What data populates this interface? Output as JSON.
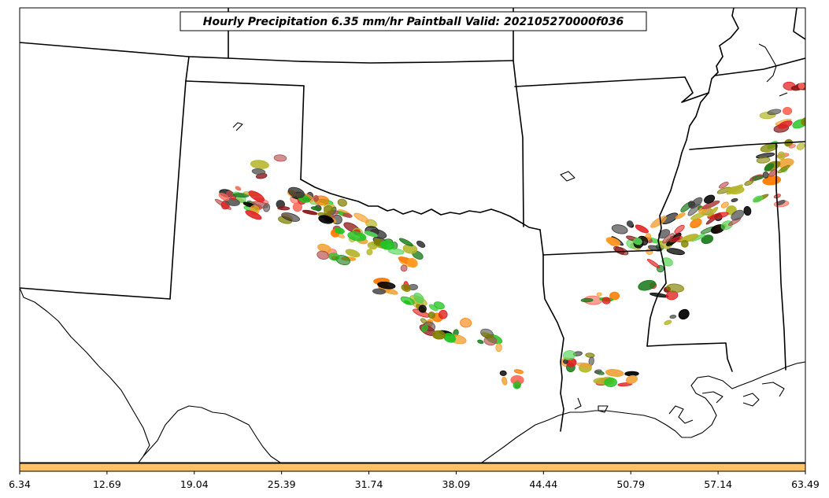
{
  "title": "Hourly Precipitation 6.35 mm/hr Paintball Valid: 202105270000f036",
  "colorbar": {
    "fill_color": "#ffc266",
    "ticks": [
      "6.34",
      "12.69",
      "19.04",
      "25.39",
      "31.74",
      "38.09",
      "44.44",
      "50.79",
      "57.14",
      "63.49"
    ]
  },
  "paintball_colors": [
    "#808000",
    "#b5b52a",
    "#1e7b1e",
    "#22c322",
    "#55d455",
    "#8b1a1a",
    "#b44a4a",
    "#e02020",
    "#ff6a5a",
    "#ff7a00",
    "#ff9a20",
    "#f0a030",
    "#333333",
    "#555555",
    "#000000"
  ],
  "map": {
    "features": [
      "state-borders",
      "coastline",
      "mississippi-river",
      "great-lakes-none"
    ]
  }
}
